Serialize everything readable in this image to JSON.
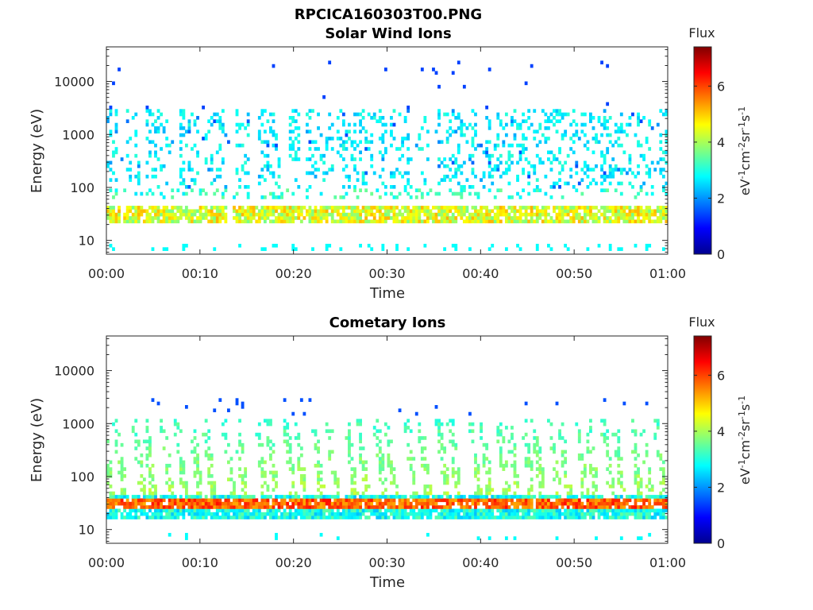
{
  "figure": {
    "title": "RPCICA160303T00.PNG"
  },
  "chart_data": [
    {
      "type": "heatmap",
      "title": "Solar Wind Ions",
      "xlabel": "Time",
      "ylabel": "Energy (eV)",
      "x_ticks": [
        "00:00",
        "00:10",
        "00:20",
        "00:30",
        "00:40",
        "00:50",
        "01:00"
      ],
      "x_range_minutes": [
        0,
        60
      ],
      "y_scale": "log",
      "y_ticks": [
        "10",
        "100",
        "1000",
        "10000"
      ],
      "y_range": [
        5.5,
        45000
      ],
      "colorbar": {
        "title": "Flux",
        "label": "eV-1cm-2sr-1s-1",
        "ticks": [
          "0",
          "2",
          "4",
          "6"
        ],
        "range": [
          0,
          7.4
        ],
        "colormap": "jet"
      },
      "bursts_minutes": [
        0.5,
        2.8,
        4.8,
        6.2,
        8.3,
        9.2,
        11.1,
        11.8,
        14.5,
        16.8,
        18.0,
        20.1,
        22.0,
        23.6,
        25.3,
        26.9,
        28.2,
        29.4,
        31.0,
        32.1,
        33.9,
        36.0,
        37.3,
        38.8,
        41.0,
        42.5,
        44.0,
        45.2,
        46.0,
        47.5,
        48.9,
        49.6,
        51.5,
        52.8,
        54.0,
        55.0,
        56.6,
        57.8,
        59.8
      ],
      "low_band_energy_eV": [
        22,
        45
      ],
      "low_band_flux": 5.2,
      "upper_population_energy_eV": [
        100,
        3000
      ],
      "upper_population_flux": 2.3
    },
    {
      "type": "heatmap",
      "title": "Cometary Ions",
      "xlabel": "Time",
      "ylabel": "Energy (eV)",
      "x_ticks": [
        "00:00",
        "00:10",
        "00:20",
        "00:30",
        "00:40",
        "00:50",
        "01:00"
      ],
      "x_range_minutes": [
        0,
        60
      ],
      "y_scale": "log",
      "y_ticks": [
        "10",
        "100",
        "1000",
        "10000"
      ],
      "y_range": [
        5.5,
        45000
      ],
      "colorbar": {
        "title": "Flux",
        "label": "eV-1cm-2sr-1s-1",
        "ticks": [
          "0",
          "2",
          "4",
          "6"
        ],
        "range": [
          0,
          7.4
        ],
        "colormap": "jet"
      },
      "bursts_minutes": [
        0.6,
        1.9,
        3.9,
        5.0,
        6.9,
        8.4,
        10.0,
        11.4,
        13.5,
        14.8,
        17.0,
        18.1,
        20.0,
        21.1,
        23.0,
        24.6,
        26.6,
        27.8,
        29.7,
        30.8,
        33.0,
        34.4,
        36.4,
        37.6,
        39.8,
        41.0,
        42.8,
        43.9,
        45.5,
        46.6,
        48.3,
        49.4,
        51.2,
        52.3,
        54.0,
        55.2,
        57.0,
        58.1,
        59.6
      ],
      "low_band_energy_eV": [
        16,
        48
      ],
      "low_band_flux": 6.4,
      "dispersion_top_energy_eV": [
        300,
        1200
      ],
      "dispersion_flux": 3.5
    }
  ]
}
